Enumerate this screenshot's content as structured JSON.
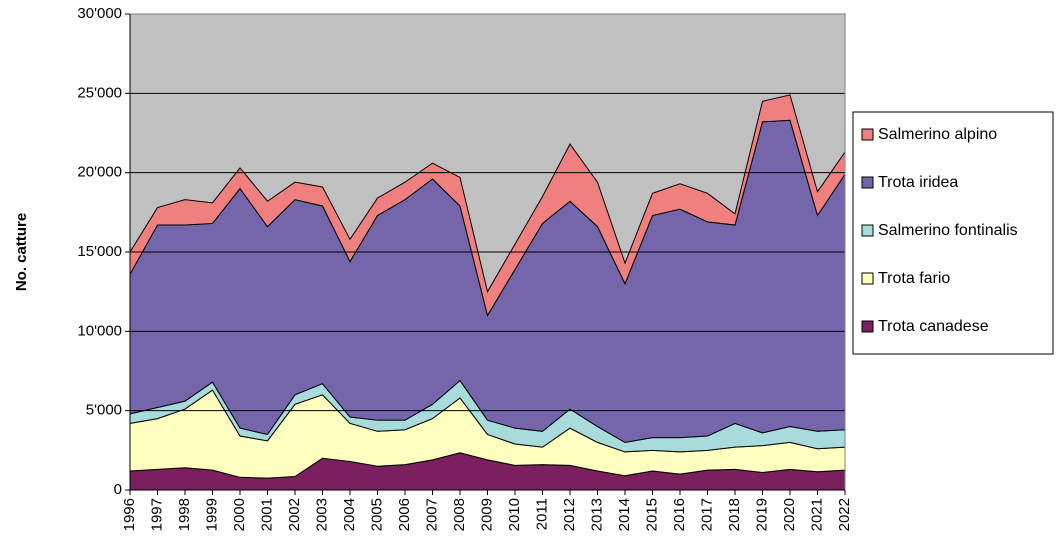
{
  "chart_data": {
    "type": "stacked-area",
    "y_label": "No. catture",
    "categories": [
      "1996",
      "1997",
      "1998",
      "1999",
      "2000",
      "2001",
      "2002",
      "2003",
      "2004",
      "2005",
      "2006",
      "2007",
      "2008",
      "2009",
      "2010",
      "2011",
      "2012",
      "2013",
      "2014",
      "2015",
      "2016",
      "2017",
      "2018",
      "2019",
      "2020",
      "2021",
      "2022"
    ],
    "ylim": [
      0,
      30000
    ],
    "yticks": [
      0,
      {
        "value": 5000,
        "label": "5'000"
      },
      {
        "value": 10000,
        "label": "10'000"
      },
      {
        "value": 15000,
        "label": "15'000"
      },
      {
        "value": 20000,
        "label": "20'000"
      },
      {
        "value": 25000,
        "label": "25'000"
      },
      {
        "value": 30000,
        "label": "30'000"
      }
    ],
    "grid": true,
    "background": "#c0c0c0",
    "legend": "right",
    "series": [
      {
        "name": "Trota canadese",
        "color": "#7b1f5e",
        "values": [
          1200,
          1300,
          1400,
          1250,
          800,
          750,
          850,
          2000,
          1800,
          1500,
          1600,
          1900,
          2350,
          1900,
          1550,
          1600,
          1550,
          1200,
          900,
          1200,
          1000,
          1250,
          1300,
          1100,
          1300,
          1150,
          1250
        ]
      },
      {
        "name": "Trota fario",
        "color": "#ffffc0",
        "values": [
          3000,
          3200,
          3700,
          5050,
          2600,
          2350,
          4550,
          4000,
          2400,
          2200,
          2200,
          2600,
          3450,
          1600,
          1350,
          1100,
          2350,
          1800,
          1500,
          1300,
          1400,
          1250,
          1400,
          1700,
          1700,
          1450,
          1450
        ]
      },
      {
        "name": "Salmerino fontinalis",
        "color": "#a8dcdc",
        "values": [
          600,
          700,
          500,
          500,
          500,
          400,
          600,
          700,
          400,
          700,
          600,
          900,
          1100,
          900,
          1000,
          1000,
          1200,
          1000,
          600,
          800,
          900,
          900,
          1500,
          800,
          1000,
          1100,
          1100
        ]
      },
      {
        "name": "Trota iridea",
        "color": "#7566ab",
        "values": [
          8800,
          11500,
          11100,
          10000,
          15100,
          13100,
          12300,
          11200,
          9800,
          12900,
          13900,
          14200,
          11000,
          6600,
          10000,
          13100,
          13100,
          12600,
          10000,
          14000,
          14400,
          13500,
          12500,
          19600,
          19300,
          13600,
          16100
        ]
      },
      {
        "name": "Salmerino alpino",
        "color": "#f08080",
        "values": [
          1400,
          1100,
          1600,
          1300,
          1300,
          1600,
          1100,
          1200,
          1400,
          1100,
          1100,
          1000,
          1800,
          1500,
          1600,
          1700,
          3600,
          2800,
          1300,
          1400,
          1600,
          1800,
          700,
          1300,
          1600,
          1500,
          1400
        ]
      }
    ]
  }
}
